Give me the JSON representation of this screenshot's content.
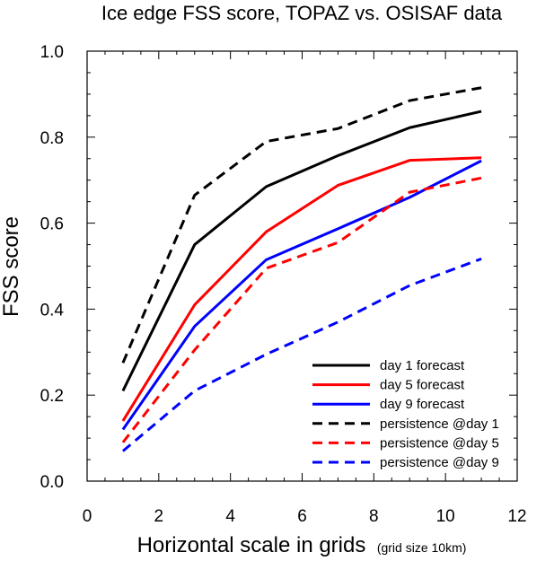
{
  "chart_data": {
    "type": "line",
    "title": "Ice edge FSS score, TOPAZ vs. OSISAF data",
    "xlabel": "Horizontal scale in grids",
    "xlabel_note": "(grid size 10km)",
    "ylabel": "FSS score",
    "xlim": [
      0,
      12
    ],
    "ylim": [
      0,
      1
    ],
    "x_ticks": [
      "0",
      "2",
      "4",
      "6",
      "8",
      "10",
      "12"
    ],
    "y_ticks": [
      "0.0",
      "0.2",
      "0.4",
      "0.6",
      "0.8",
      "1.0"
    ],
    "x": [
      1,
      3,
      5,
      7,
      9,
      11
    ],
    "legend_position": "bottom-right",
    "series": [
      {
        "name": "day 1 forecast",
        "color": "#000000",
        "dash": "solid",
        "values": [
          0.21,
          0.55,
          0.685,
          0.757,
          0.822,
          0.86
        ]
      },
      {
        "name": "day 5 forecast",
        "color": "#ff0000",
        "dash": "solid",
        "values": [
          0.14,
          0.41,
          0.58,
          0.688,
          0.746,
          0.752
        ]
      },
      {
        "name": "day 9 forecast",
        "color": "#0000ff",
        "dash": "solid",
        "values": [
          0.12,
          0.36,
          0.515,
          0.587,
          0.66,
          0.745
        ]
      },
      {
        "name": "persistence @day 1",
        "color": "#000000",
        "dash": "dashed",
        "values": [
          0.275,
          0.665,
          0.79,
          0.82,
          0.885,
          0.915
        ]
      },
      {
        "name": "persistence @day 5",
        "color": "#ff0000",
        "dash": "dashed",
        "values": [
          0.09,
          0.305,
          0.495,
          0.555,
          0.672,
          0.705
        ]
      },
      {
        "name": "persistence @day 9",
        "color": "#0000ff",
        "dash": "dashed",
        "values": [
          0.07,
          0.21,
          0.295,
          0.37,
          0.455,
          0.517
        ]
      }
    ]
  }
}
